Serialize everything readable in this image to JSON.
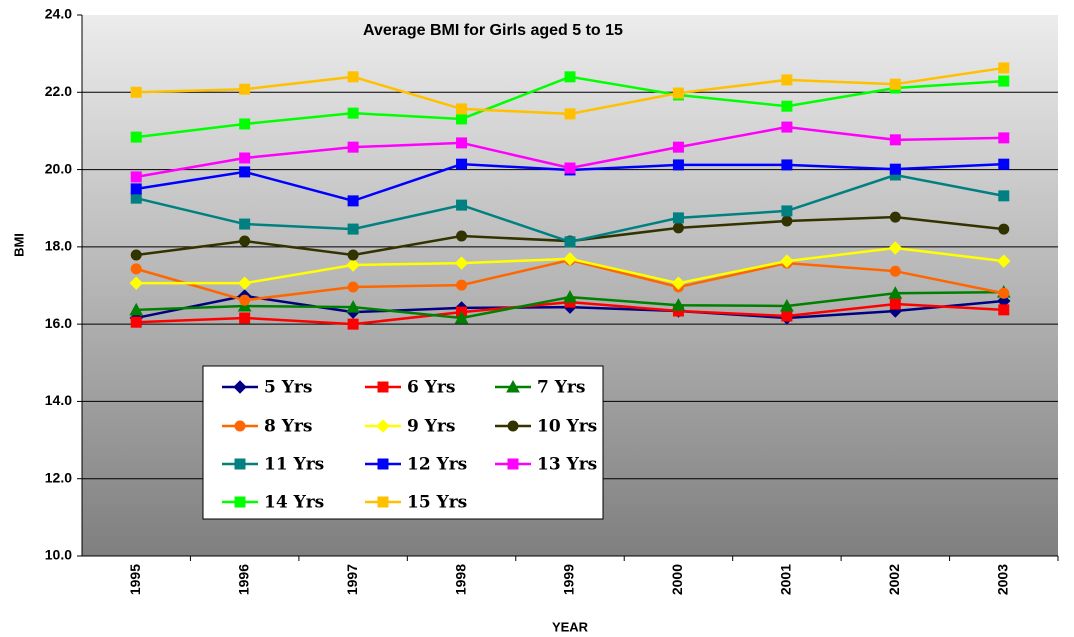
{
  "chart_data": {
    "type": "line",
    "title": "Average BMI for Girls aged 5 to 15",
    "x_label": "YEAR",
    "y_label": "BMI",
    "categories": [
      "1995",
      "1996",
      "1997",
      "1998",
      "1999",
      "2000",
      "2001",
      "2002",
      "2003"
    ],
    "ylim": [
      10,
      24
    ],
    "yticks": [
      {
        "value": 10,
        "label": "10.0"
      },
      {
        "value": 12,
        "label": "12.0"
      },
      {
        "value": 14,
        "label": "14.0"
      },
      {
        "value": 16,
        "label": "16.0"
      },
      {
        "value": 18,
        "label": "18.0"
      },
      {
        "value": 20,
        "label": "20.0"
      },
      {
        "value": 22,
        "label": "22.0"
      },
      {
        "value": 24,
        "label": "24.0"
      }
    ],
    "grid": true,
    "series": [
      {
        "name": "5 Yrs",
        "color": "#000080",
        "marker": "diamond",
        "values": [
          16.16,
          16.73,
          16.31,
          16.42,
          16.44,
          16.34,
          16.16,
          16.34,
          16.6
        ]
      },
      {
        "name": "6 Yrs",
        "color": "#ff0000",
        "marker": "square",
        "values": [
          16.05,
          16.16,
          16.0,
          16.31,
          16.57,
          16.34,
          16.21,
          16.52,
          16.37
        ]
      },
      {
        "name": "7 Yrs",
        "color": "#008000",
        "marker": "triangle",
        "values": [
          16.37,
          16.47,
          16.44,
          16.16,
          16.7,
          16.49,
          16.47,
          16.8,
          16.83
        ]
      },
      {
        "name": "8 Yrs",
        "color": "#ff6600",
        "marker": "circle",
        "values": [
          17.43,
          16.62,
          16.96,
          17.01,
          17.66,
          16.96,
          17.58,
          17.37,
          16.8
        ]
      },
      {
        "name": "9 Yrs",
        "color": "#ffff00",
        "marker": "diamond",
        "values": [
          17.06,
          17.06,
          17.53,
          17.58,
          17.69,
          17.06,
          17.63,
          17.97,
          17.63
        ]
      },
      {
        "name": "10 Yrs",
        "color": "#333300",
        "marker": "circle",
        "values": [
          17.79,
          18.15,
          17.79,
          18.28,
          18.15,
          18.49,
          18.67,
          18.77,
          18.46
        ]
      },
      {
        "name": "11 Yrs",
        "color": "#008080",
        "marker": "square",
        "values": [
          19.26,
          18.59,
          18.46,
          19.08,
          18.13,
          18.75,
          18.93,
          19.86,
          19.32
        ]
      },
      {
        "name": "12 Yrs",
        "color": "#0000ff",
        "marker": "square",
        "values": [
          19.5,
          19.94,
          19.19,
          20.14,
          19.99,
          20.12,
          20.12,
          20.01,
          20.14
        ]
      },
      {
        "name": "13 Yrs",
        "color": "#ff00ff",
        "marker": "square",
        "values": [
          19.81,
          20.3,
          20.58,
          20.69,
          20.04,
          20.58,
          21.1,
          20.77,
          20.82
        ]
      },
      {
        "name": "14 Yrs",
        "color": "#00ff00",
        "marker": "square",
        "values": [
          20.84,
          21.18,
          21.46,
          21.31,
          22.4,
          21.93,
          21.64,
          22.11,
          22.29
        ]
      },
      {
        "name": "15 Yrs",
        "color": "#ffc000",
        "marker": "square",
        "values": [
          22.0,
          22.08,
          22.4,
          21.57,
          21.44,
          21.98,
          22.32,
          22.21,
          22.63
        ]
      }
    ]
  }
}
